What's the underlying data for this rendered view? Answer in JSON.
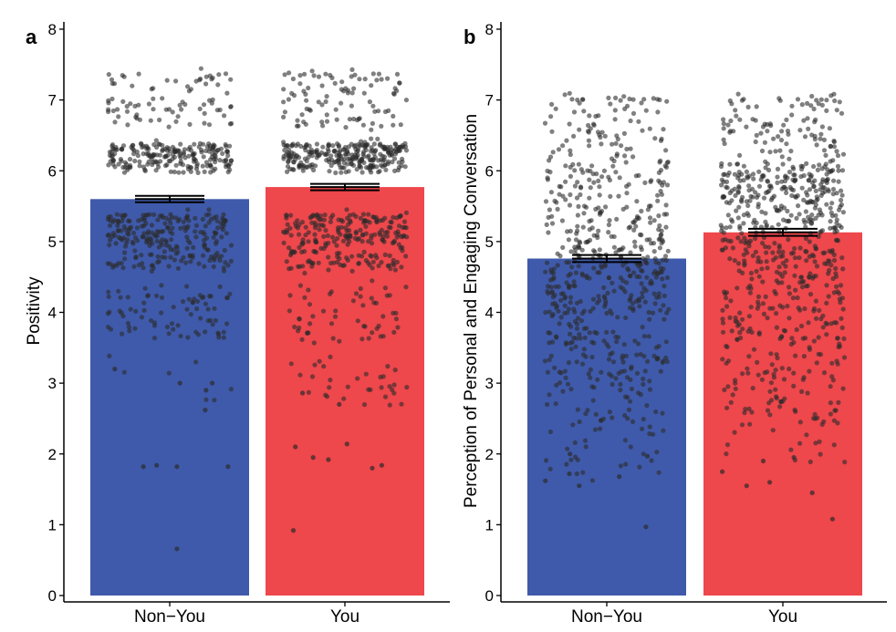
{
  "figure": {
    "panels": [
      "a",
      "b"
    ]
  },
  "colors": {
    "non_you": "#3f5aab",
    "you": "#ee474c",
    "points": "#2b2b2b",
    "axis": "#000000"
  },
  "chart_data": [
    {
      "type": "bar",
      "panel_label": "a",
      "title": "",
      "xlabel": "",
      "ylabel": "Positivity",
      "categories": [
        "Non−You",
        "You"
      ],
      "values": [
        5.6,
        5.77
      ],
      "error": [
        0.045,
        0.045
      ],
      "ylim": [
        0,
        8
      ],
      "yticks": [
        0,
        1,
        2,
        3,
        4,
        5,
        6,
        7,
        8
      ],
      "grid": false,
      "overlay": "jittered individual points (semi-transparent dark grey)",
      "point_distribution": {
        "Non−You": {
          "n": 620,
          "outliers": [
            0.66,
            1.82,
            1.82,
            1.82,
            1.84,
            2.62,
            2.9,
            3.0,
            3.0,
            3.2
          ]
        },
        "You": {
          "n": 700,
          "outliers": [
            0.92,
            1.8,
            1.84,
            1.92,
            1.95,
            2.1,
            2.14,
            2.7,
            2.86
          ]
        }
      }
    },
    {
      "type": "bar",
      "panel_label": "b",
      "title": "",
      "xlabel": "",
      "ylabel": "Perception of Personal and Engaging Conversation",
      "categories": [
        "Non−You",
        "You"
      ],
      "values": [
        4.76,
        5.13
      ],
      "error": [
        0.05,
        0.05
      ],
      "ylim": [
        0,
        8
      ],
      "yticks": [
        0,
        1,
        2,
        3,
        4,
        5,
        6,
        7,
        8
      ],
      "grid": false,
      "overlay": "jittered individual points (semi-transparent dark grey)",
      "point_distribution": {
        "Non−You": {
          "n": 640,
          "outliers": [
            0.97,
            1.55,
            1.62,
            1.68,
            1.72,
            1.97,
            2.0
          ]
        },
        "You": {
          "n": 720,
          "outliers": [
            1.08,
            1.45,
            1.55,
            1.6,
            1.75,
            1.9,
            1.95
          ]
        }
      }
    }
  ]
}
